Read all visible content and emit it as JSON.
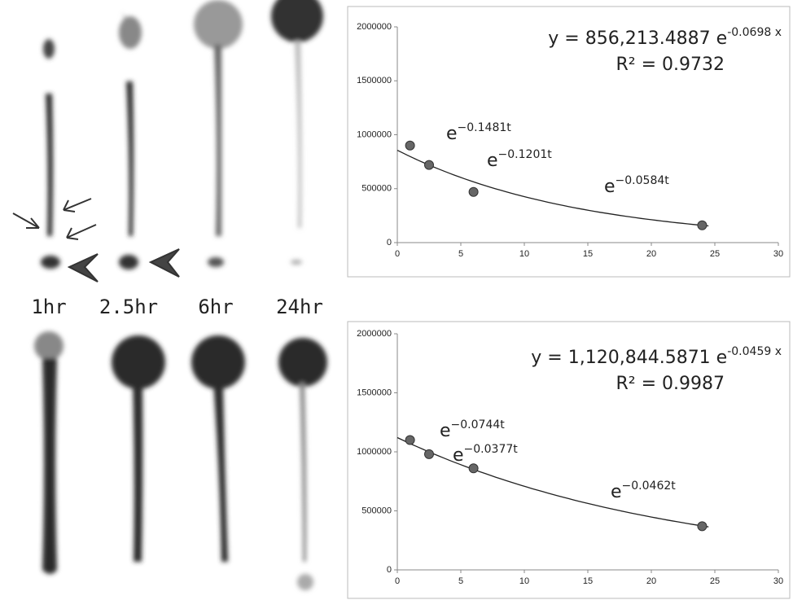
{
  "time_labels": [
    "1hr",
    "2.5hr",
    "6hr",
    "24hr"
  ],
  "chart_data": [
    {
      "type": "scatter",
      "x": [
        1,
        2.5,
        6,
        24
      ],
      "values": [
        900000,
        720000,
        470000,
        160000
      ],
      "color": "#666666",
      "xlim": [
        0,
        30
      ],
      "xticks": [
        0,
        5,
        10,
        15,
        20,
        25,
        30
      ],
      "ylim": [
        0,
        2000000
      ],
      "yticks": [
        0,
        500000,
        1000000,
        1500000,
        2000000
      ],
      "trendline": {
        "a": {
          "value": 856213.4887,
          "label": "y = 856,213.4887 e"
        },
        "b": {
          "value": -0.0698,
          "label": "-0.0698 x"
        }
      },
      "r2": {
        "value": 0.9732,
        "label": "R² = 0.9732"
      },
      "annotations": [
        {
          "base": "e",
          "exponent": "−0.1481t"
        },
        {
          "base": "e",
          "exponent": "−0.1201t"
        },
        {
          "base": "e",
          "exponent": "−0.0584t"
        }
      ]
    },
    {
      "type": "scatter",
      "x": [
        1,
        2.5,
        6,
        24
      ],
      "values": [
        1100000,
        980000,
        860000,
        370000
      ],
      "color": "#666666",
      "xlim": [
        0,
        30
      ],
      "xticks": [
        0,
        5,
        10,
        15,
        20,
        25,
        30
      ],
      "ylim": [
        0,
        2000000
      ],
      "yticks": [
        0,
        500000,
        1000000,
        1500000,
        2000000
      ],
      "trendline": {
        "a": {
          "value": 1120844.5871,
          "label": "y = 1,120,844.5871 e"
        },
        "b": {
          "value": -0.0459,
          "label": "-0.0459 x"
        }
      },
      "r2": {
        "value": 0.9987,
        "label": "R² = 0.9987"
      },
      "annotations": [
        {
          "base": "e",
          "exponent": "−0.0744t"
        },
        {
          "base": "e",
          "exponent": "−0.0377t"
        },
        {
          "base": "e",
          "exponent": "−0.0462t"
        }
      ]
    }
  ]
}
